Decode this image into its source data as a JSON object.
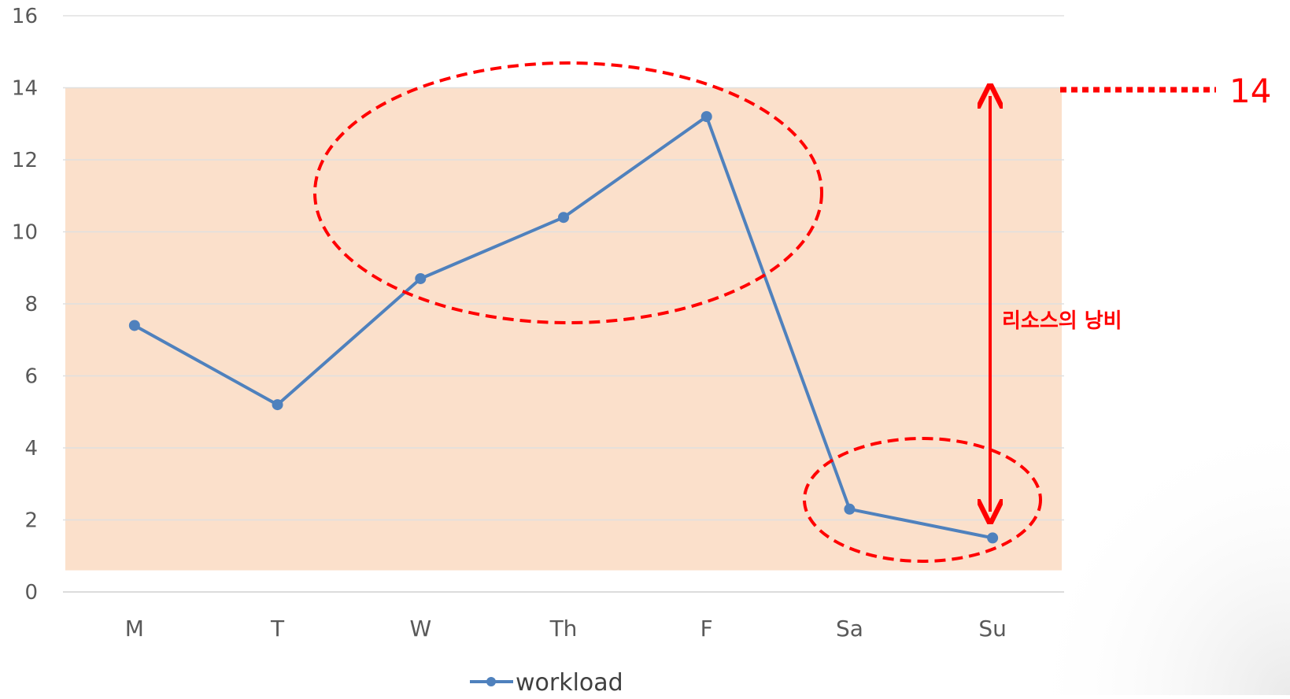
{
  "chart_data": {
    "type": "line",
    "categories": [
      "M",
      "T",
      "W",
      "Th",
      "F",
      "Sa",
      "Su"
    ],
    "series": [
      {
        "name": "workload",
        "values": [
          7.4,
          5.2,
          8.7,
          10.4,
          13.2,
          2.3,
          1.5
        ],
        "color": "#4f81bd"
      }
    ],
    "y_ticks": [
      "0",
      "2",
      "4",
      "6",
      "8",
      "10",
      "12",
      "14",
      "16"
    ],
    "ylim": [
      0,
      16
    ],
    "grid": true,
    "legend_position": "bottom",
    "highlight_band": {
      "from": 0.6,
      "to": 14,
      "color": "#fbe0cb"
    },
    "annotations": {
      "capacity_value": "14",
      "waste_label": "리소스의 낭비",
      "accent_color": "#ff0000"
    }
  }
}
